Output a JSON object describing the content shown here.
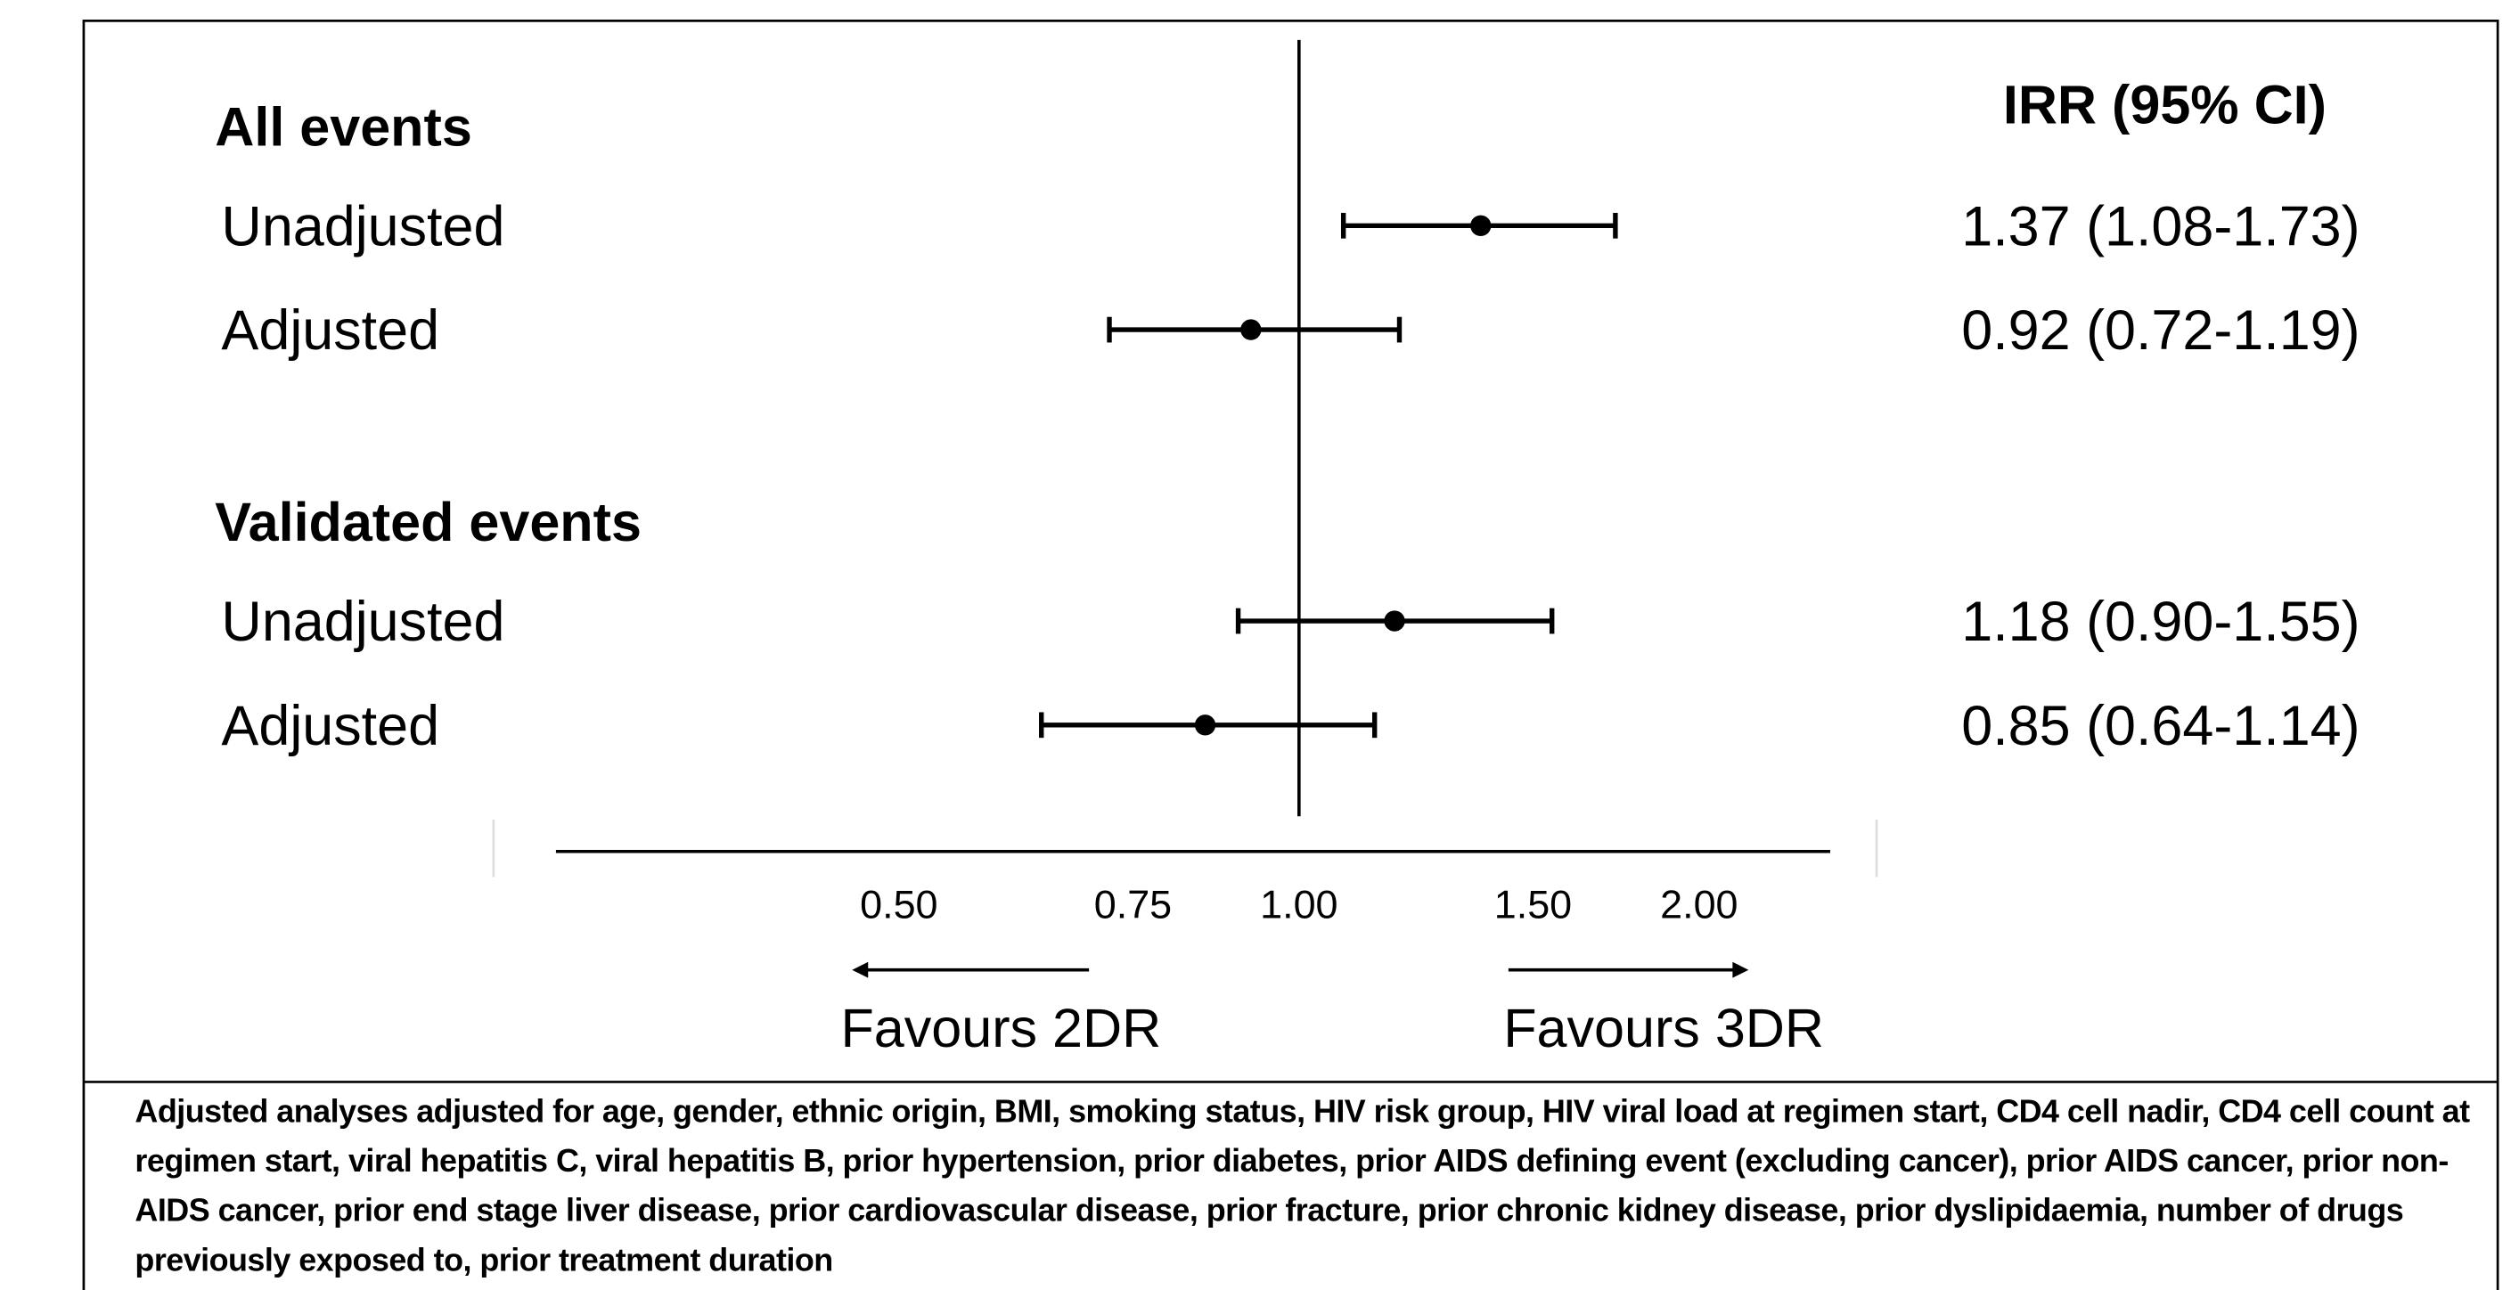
{
  "chart_data": {
    "type": "forest",
    "xscale": "log",
    "xlim": [
      0.276,
      2.51
    ],
    "xticks": [
      {
        "value": 0.5,
        "label": "0.50"
      },
      {
        "value": 0.75,
        "label": "0.75"
      },
      {
        "value": 1,
        "label": "1.00"
      },
      {
        "value": 1.5,
        "label": "1.50"
      },
      {
        "value": 2,
        "label": "2.00"
      }
    ],
    "reference": 1,
    "color": "#000000",
    "column_header": "IRR (95% CI)",
    "groups": [
      {
        "name": "All events",
        "categories": [
          "Unadjusted",
          "Adjusted"
        ],
        "values": [
          1.37,
          0.92
        ],
        "lower": [
          1.08,
          0.72
        ],
        "upper": [
          1.73,
          1.19
        ],
        "value_labels": [
          "1.37 (1.08-1.73)",
          "0.92 (0.72-1.19)"
        ]
      },
      {
        "name": "Validated events",
        "categories": [
          "Unadjusted",
          "Adjusted"
        ],
        "values": [
          1.18,
          0.85
        ],
        "lower": [
          0.9,
          0.64
        ],
        "upper": [
          1.55,
          1.14
        ],
        "value_labels": [
          "1.18 (0.90-1.55)",
          "0.85 (0.64-1.14)"
        ]
      }
    ],
    "left_label": "Favours 2DR",
    "right_label": "Favours 3DR",
    "footnote": "Adjusted analyses adjusted for age, gender, ethnic origin, BMI, smoking status, HIV risk group, HIV viral load at regimen start, CD4 cell nadir, CD4 cell count at regimen start, viral hepatitis C, viral hepatitis B, prior hypertension, prior diabetes, prior AIDS defining event (excluding cancer), prior AIDS cancer, prior non-AIDS cancer, prior end stage liver disease, prior cardiovascular disease, prior fracture, prior chronic kidney disease, prior dyslipidaemia, number of drugs previously exposed to, prior treatment duration"
  }
}
